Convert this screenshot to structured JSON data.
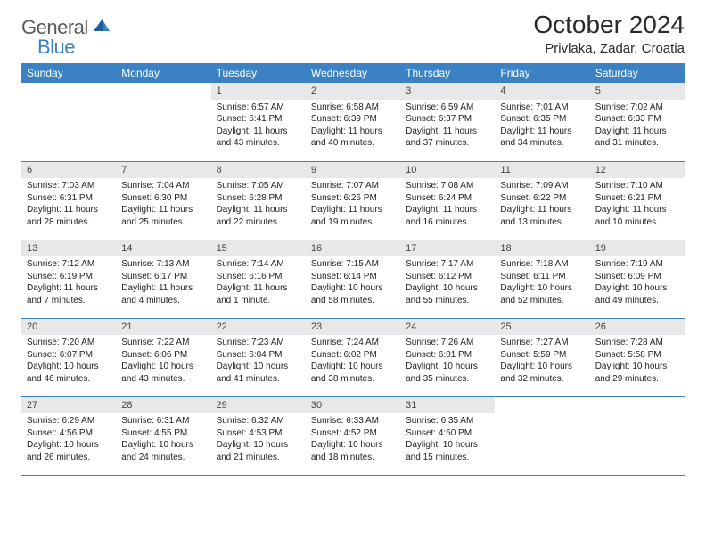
{
  "brand": {
    "name_a": "General",
    "name_b": "Blue"
  },
  "title": "October 2024",
  "location": "Privlaka, Zadar, Croatia",
  "calendar": {
    "header_bg": "#3b82c4",
    "header_fg": "#ffffff",
    "daynum_bg": "#e8e8e8",
    "border_color": "#3b82c4",
    "columns": [
      "Sunday",
      "Monday",
      "Tuesday",
      "Wednesday",
      "Thursday",
      "Friday",
      "Saturday"
    ],
    "weeks": [
      [
        null,
        null,
        {
          "n": "1",
          "sr": "6:57 AM",
          "ss": "6:41 PM",
          "dl": "11 hours and 43 minutes."
        },
        {
          "n": "2",
          "sr": "6:58 AM",
          "ss": "6:39 PM",
          "dl": "11 hours and 40 minutes."
        },
        {
          "n": "3",
          "sr": "6:59 AM",
          "ss": "6:37 PM",
          "dl": "11 hours and 37 minutes."
        },
        {
          "n": "4",
          "sr": "7:01 AM",
          "ss": "6:35 PM",
          "dl": "11 hours and 34 minutes."
        },
        {
          "n": "5",
          "sr": "7:02 AM",
          "ss": "6:33 PM",
          "dl": "11 hours and 31 minutes."
        }
      ],
      [
        {
          "n": "6",
          "sr": "7:03 AM",
          "ss": "6:31 PM",
          "dl": "11 hours and 28 minutes."
        },
        {
          "n": "7",
          "sr": "7:04 AM",
          "ss": "6:30 PM",
          "dl": "11 hours and 25 minutes."
        },
        {
          "n": "8",
          "sr": "7:05 AM",
          "ss": "6:28 PM",
          "dl": "11 hours and 22 minutes."
        },
        {
          "n": "9",
          "sr": "7:07 AM",
          "ss": "6:26 PM",
          "dl": "11 hours and 19 minutes."
        },
        {
          "n": "10",
          "sr": "7:08 AM",
          "ss": "6:24 PM",
          "dl": "11 hours and 16 minutes."
        },
        {
          "n": "11",
          "sr": "7:09 AM",
          "ss": "6:22 PM",
          "dl": "11 hours and 13 minutes."
        },
        {
          "n": "12",
          "sr": "7:10 AM",
          "ss": "6:21 PM",
          "dl": "11 hours and 10 minutes."
        }
      ],
      [
        {
          "n": "13",
          "sr": "7:12 AM",
          "ss": "6:19 PM",
          "dl": "11 hours and 7 minutes."
        },
        {
          "n": "14",
          "sr": "7:13 AM",
          "ss": "6:17 PM",
          "dl": "11 hours and 4 minutes."
        },
        {
          "n": "15",
          "sr": "7:14 AM",
          "ss": "6:16 PM",
          "dl": "11 hours and 1 minute."
        },
        {
          "n": "16",
          "sr": "7:15 AM",
          "ss": "6:14 PM",
          "dl": "10 hours and 58 minutes."
        },
        {
          "n": "17",
          "sr": "7:17 AM",
          "ss": "6:12 PM",
          "dl": "10 hours and 55 minutes."
        },
        {
          "n": "18",
          "sr": "7:18 AM",
          "ss": "6:11 PM",
          "dl": "10 hours and 52 minutes."
        },
        {
          "n": "19",
          "sr": "7:19 AM",
          "ss": "6:09 PM",
          "dl": "10 hours and 49 minutes."
        }
      ],
      [
        {
          "n": "20",
          "sr": "7:20 AM",
          "ss": "6:07 PM",
          "dl": "10 hours and 46 minutes."
        },
        {
          "n": "21",
          "sr": "7:22 AM",
          "ss": "6:06 PM",
          "dl": "10 hours and 43 minutes."
        },
        {
          "n": "22",
          "sr": "7:23 AM",
          "ss": "6:04 PM",
          "dl": "10 hours and 41 minutes."
        },
        {
          "n": "23",
          "sr": "7:24 AM",
          "ss": "6:02 PM",
          "dl": "10 hours and 38 minutes."
        },
        {
          "n": "24",
          "sr": "7:26 AM",
          "ss": "6:01 PM",
          "dl": "10 hours and 35 minutes."
        },
        {
          "n": "25",
          "sr": "7:27 AM",
          "ss": "5:59 PM",
          "dl": "10 hours and 32 minutes."
        },
        {
          "n": "26",
          "sr": "7:28 AM",
          "ss": "5:58 PM",
          "dl": "10 hours and 29 minutes."
        }
      ],
      [
        {
          "n": "27",
          "sr": "6:29 AM",
          "ss": "4:56 PM",
          "dl": "10 hours and 26 minutes."
        },
        {
          "n": "28",
          "sr": "6:31 AM",
          "ss": "4:55 PM",
          "dl": "10 hours and 24 minutes."
        },
        {
          "n": "29",
          "sr": "6:32 AM",
          "ss": "4:53 PM",
          "dl": "10 hours and 21 minutes."
        },
        {
          "n": "30",
          "sr": "6:33 AM",
          "ss": "4:52 PM",
          "dl": "10 hours and 18 minutes."
        },
        {
          "n": "31",
          "sr": "6:35 AM",
          "ss": "4:50 PM",
          "dl": "10 hours and 15 minutes."
        },
        null,
        null
      ]
    ],
    "labels": {
      "sunrise": "Sunrise:",
      "sunset": "Sunset:",
      "daylight": "Daylight:"
    }
  }
}
